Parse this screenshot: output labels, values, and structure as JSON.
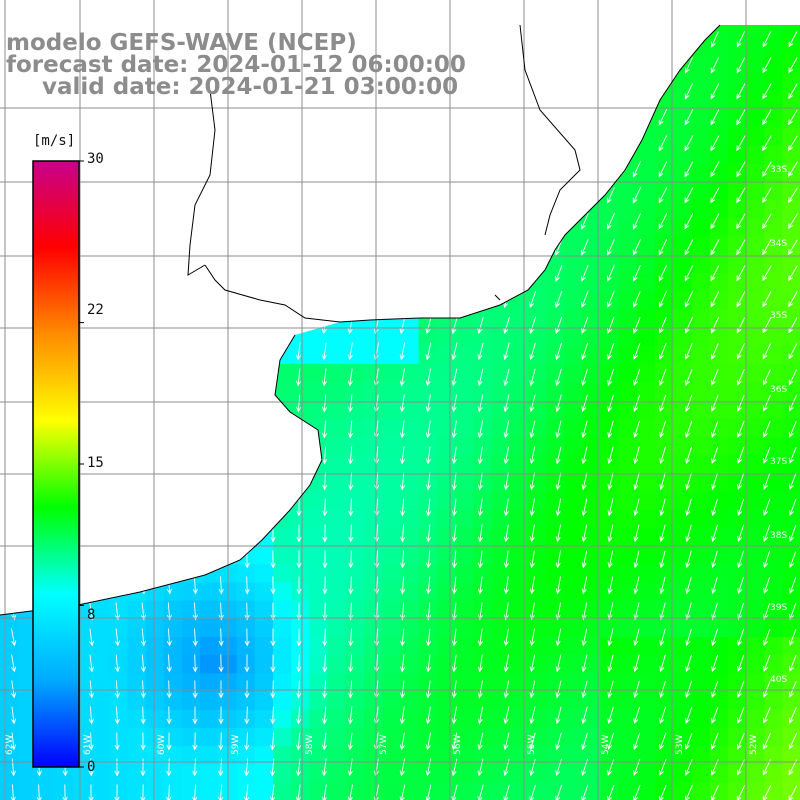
{
  "title": {
    "line1": "modelo GEFS-WAVE (NCEP)",
    "line2": "forecast date: 2024-01-12 06:00:00",
    "line3": "valid date: 2024-01-21 03:00:00"
  },
  "colorbar": {
    "unit_label": "[m/s]",
    "ticks": [
      {
        "label": "30",
        "value": 30
      },
      {
        "label": "22",
        "value": 22
      },
      {
        "label": "15",
        "value": 15
      },
      {
        "label": "8",
        "value": 8
      },
      {
        "label": "0",
        "value": 0
      }
    ],
    "range": [
      0,
      30
    ],
    "stops": [
      "#0000ff",
      "#00aaff",
      "#00ffff",
      "#00ff00",
      "#ffff00",
      "#ff8c00",
      "#ff0000",
      "#c8008c"
    ]
  },
  "map": {
    "variable": "wind speed",
    "arrow_direction": "from north-northeast toward south-southwest",
    "land_color": "#ffffff",
    "coastline_color": "#000000",
    "grid_color": "#8c8c8c",
    "latitude_labels": [
      "33S",
      "34S",
      "35S",
      "36S",
      "37S",
      "38S",
      "39S",
      "40S"
    ],
    "longitude_labels": [
      "62W",
      "61W",
      "60W",
      "59W",
      "58W",
      "57W",
      "56W",
      "55W",
      "54W",
      "53W",
      "52W"
    ]
  }
}
